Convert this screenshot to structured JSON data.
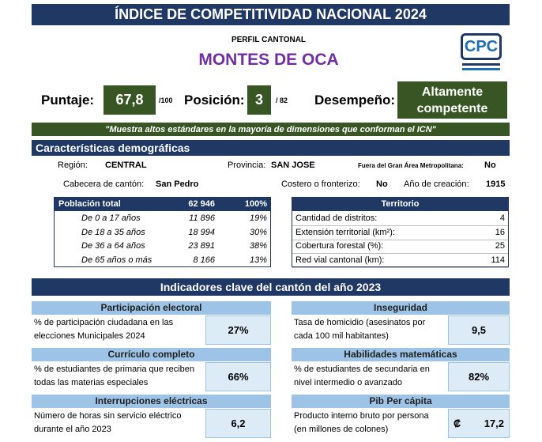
{
  "header": {
    "title": "ÍNDICE DE COMPETITIVIDAD NACIONAL 2024",
    "subtitle": "PERFIL CANTONAL",
    "canton": "MONTES DE OCA"
  },
  "logo": {
    "text": "CPC"
  },
  "summary": {
    "score_label": "Puntaje:",
    "score": "67,8",
    "score_max": "/100",
    "position_label": "Posición:",
    "position": "3",
    "position_max": "/ 82",
    "performance_label": "Desempeño:",
    "performance": "Altamente competente"
  },
  "quote": "\"Muestra altos estándares en la mayoría de dimensiones que conforman el ICN\"",
  "demographics": {
    "title": "Características demográficas",
    "fields": [
      {
        "label": "Región:",
        "value": "CENTRAL"
      },
      {
        "label": "Provincia:",
        "value": "SAN JOSE"
      },
      {
        "label": "Fuera del Gran Área Metropolitana:",
        "value": "No"
      },
      {
        "label": "Cabecera de cantón:",
        "value": "San Pedro"
      },
      {
        "label": "Costero o fronterizo:",
        "value": "No"
      },
      {
        "label": "Año de creación:",
        "value": "1915"
      }
    ]
  },
  "population": {
    "header": [
      "Población total",
      "62 946",
      "100%"
    ],
    "rows": [
      [
        "De 0 a 17 años",
        "11 896",
        "19%"
      ],
      [
        "De 18 a 35 años",
        "18 994",
        "30%"
      ],
      [
        "De 36 a 64 años",
        "23 891",
        "38%"
      ],
      [
        "De 65 años o más",
        "8 166",
        "13%"
      ]
    ]
  },
  "territory": {
    "title": "Territorio",
    "rows": [
      [
        "Cantidad de distritos:",
        "4"
      ],
      [
        "Extensión territorial (km²):",
        "16"
      ],
      [
        "Cobertura forestal (%):",
        "25"
      ],
      [
        "Red vial cantonal (km):",
        "114"
      ]
    ]
  },
  "indicators": {
    "title": "Indicadores clave del cantón del año 2023",
    "items": [
      {
        "title": "Participación electoral",
        "description": "% de participación ciudadana en las elecciones Municipales 2024",
        "value": "27%"
      },
      {
        "title": "Inseguridad",
        "description": "Tasa de homicidio (asesinatos por cada 100 mil habitantes)",
        "value": "9,5"
      },
      {
        "title": "Currículo completo",
        "description": "% de estudiantes de primaria que reciben todas las materias especiales",
        "value": "66%"
      },
      {
        "title": "Habilidades matemáticas",
        "description": "% de estudiantes de secundaria en nivel intermedio o avanzado",
        "value": "82%"
      },
      {
        "title": "Interrupciones eléctricas",
        "description": "Número de horas sin servicio eléctrico durante el año 2023",
        "value": "6,2"
      },
      {
        "title": "Pib Per cápita",
        "description": "Producto interno bruto por persona (en millones de colones)",
        "value": "17,2",
        "currency": "₡"
      }
    ]
  }
}
